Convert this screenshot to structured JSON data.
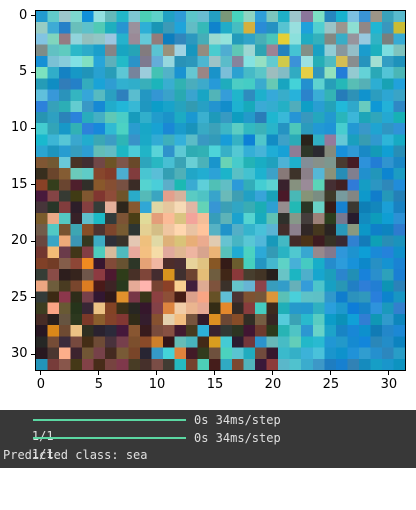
{
  "image": {
    "title": "",
    "x_ticks": [
      "0",
      "5",
      "10",
      "15",
      "20",
      "25",
      "30"
    ],
    "y_ticks": [
      "0",
      "5",
      "10",
      "15",
      "20",
      "25",
      "30"
    ],
    "rows": 32,
    "cols": 32,
    "palette": {
      "sea_deep": "#1f8fc8",
      "sea_mid": "#2aa6c6",
      "sea_light": "#57c0c8",
      "pale": "#8fd0d0",
      "rock_dark": "#3a2a28",
      "rock_brown": "#7a4a38",
      "skin": "#e8b08a",
      "skin_light": "#f4c8a4",
      "grey": "#8a8a8a",
      "accent_yellow": "#d8c048",
      "accent_orange": "#e0902c"
    }
  },
  "console": {
    "lines": [
      {
        "left": "1/1",
        "bar_progress": 1.0,
        "right": "0s 34ms/step"
      },
      {
        "left": "1/1",
        "bar_progress": 1.0,
        "right": "0s 34ms/step"
      }
    ],
    "prediction": "Predicted class: sea"
  }
}
